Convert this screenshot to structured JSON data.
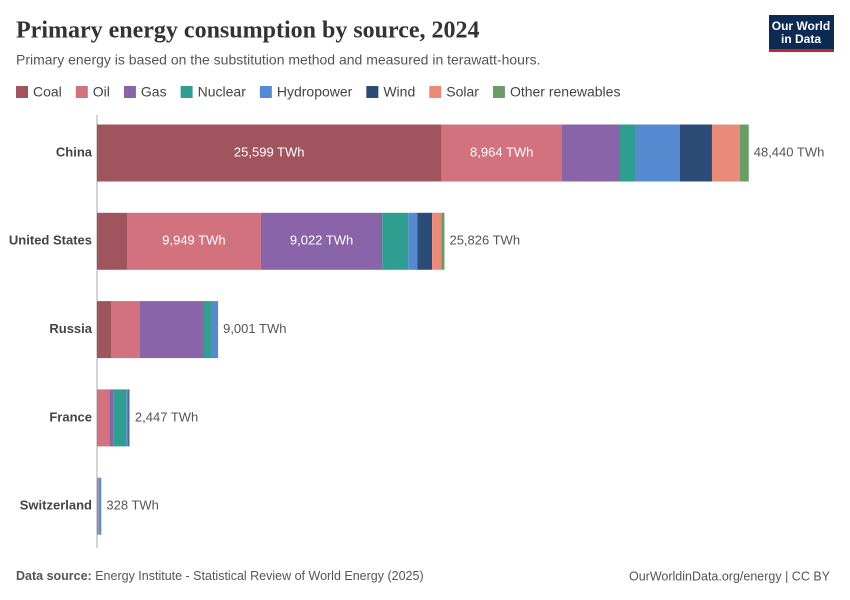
{
  "header": {
    "title": "Primary energy consumption by source, 2024",
    "subtitle": "Primary energy is based on the substitution method and measured in terawatt-hours.",
    "logo": [
      "Our World",
      "in Data"
    ]
  },
  "chart_data": {
    "type": "stacked-bar-horizontal",
    "categories": [
      "China",
      "United States",
      "Russia",
      "France",
      "Switzerland"
    ],
    "xlim": [
      0,
      55000
    ],
    "series": [
      {
        "name": "Coal",
        "color": "#a0545e",
        "values": [
          25599,
          2230,
          1040,
          20,
          1
        ],
        "value_labels": [
          "25,599 TWh",
          null,
          null,
          null,
          null
        ]
      },
      {
        "name": "Oil",
        "color": "#d2727e",
        "values": [
          8964,
          9949,
          2155,
          890,
          100
        ],
        "value_labels": [
          "8,964 TWh",
          "9,949 TWh",
          null,
          null,
          null
        ]
      },
      {
        "name": "Gas",
        "color": "#8a64a8",
        "values": [
          4310,
          9022,
          4755,
          300,
          30
        ],
        "value_labels": [
          null,
          "9,022 TWh",
          null,
          null,
          null
        ]
      },
      {
        "name": "Nuclear",
        "color": "#2f9d8f",
        "values": [
          1115,
          1930,
          520,
          970,
          70
        ],
        "value_labels": [
          null,
          null,
          null,
          null,
          null
        ]
      },
      {
        "name": "Hydropower",
        "color": "#5589d0",
        "values": [
          3340,
          670,
          520,
          150,
          100
        ],
        "value_labels": [
          null,
          null,
          null,
          null,
          null
        ]
      },
      {
        "name": "Wind",
        "color": "#2c4b76",
        "values": [
          2380,
          1110,
          5,
          60,
          1
        ],
        "value_labels": [
          null,
          null,
          null,
          null,
          null
        ]
      },
      {
        "name": "Solar",
        "color": "#ea8b79",
        "values": [
          2080,
          670,
          5,
          40,
          15
        ],
        "value_labels": [
          null,
          null,
          null,
          null,
          null
        ]
      },
      {
        "name": "Other renewables",
        "color": "#6c9c66",
        "values": [
          652,
          245,
          1,
          17,
          11
        ],
        "value_labels": [
          null,
          null,
          null,
          null,
          null
        ]
      }
    ],
    "totals": [
      48440,
      25826,
      9001,
      2447,
      328
    ],
    "total_labels": [
      "48,440 TWh",
      "25,826 TWh",
      "9,001 TWh",
      "2,447 TWh",
      "328 TWh"
    ]
  },
  "footer": {
    "source_label": "Data source:",
    "source": "Energy Institute - Statistical Review of World Energy (2025)",
    "credit": "OurWorldinData.org/energy | CC BY"
  }
}
